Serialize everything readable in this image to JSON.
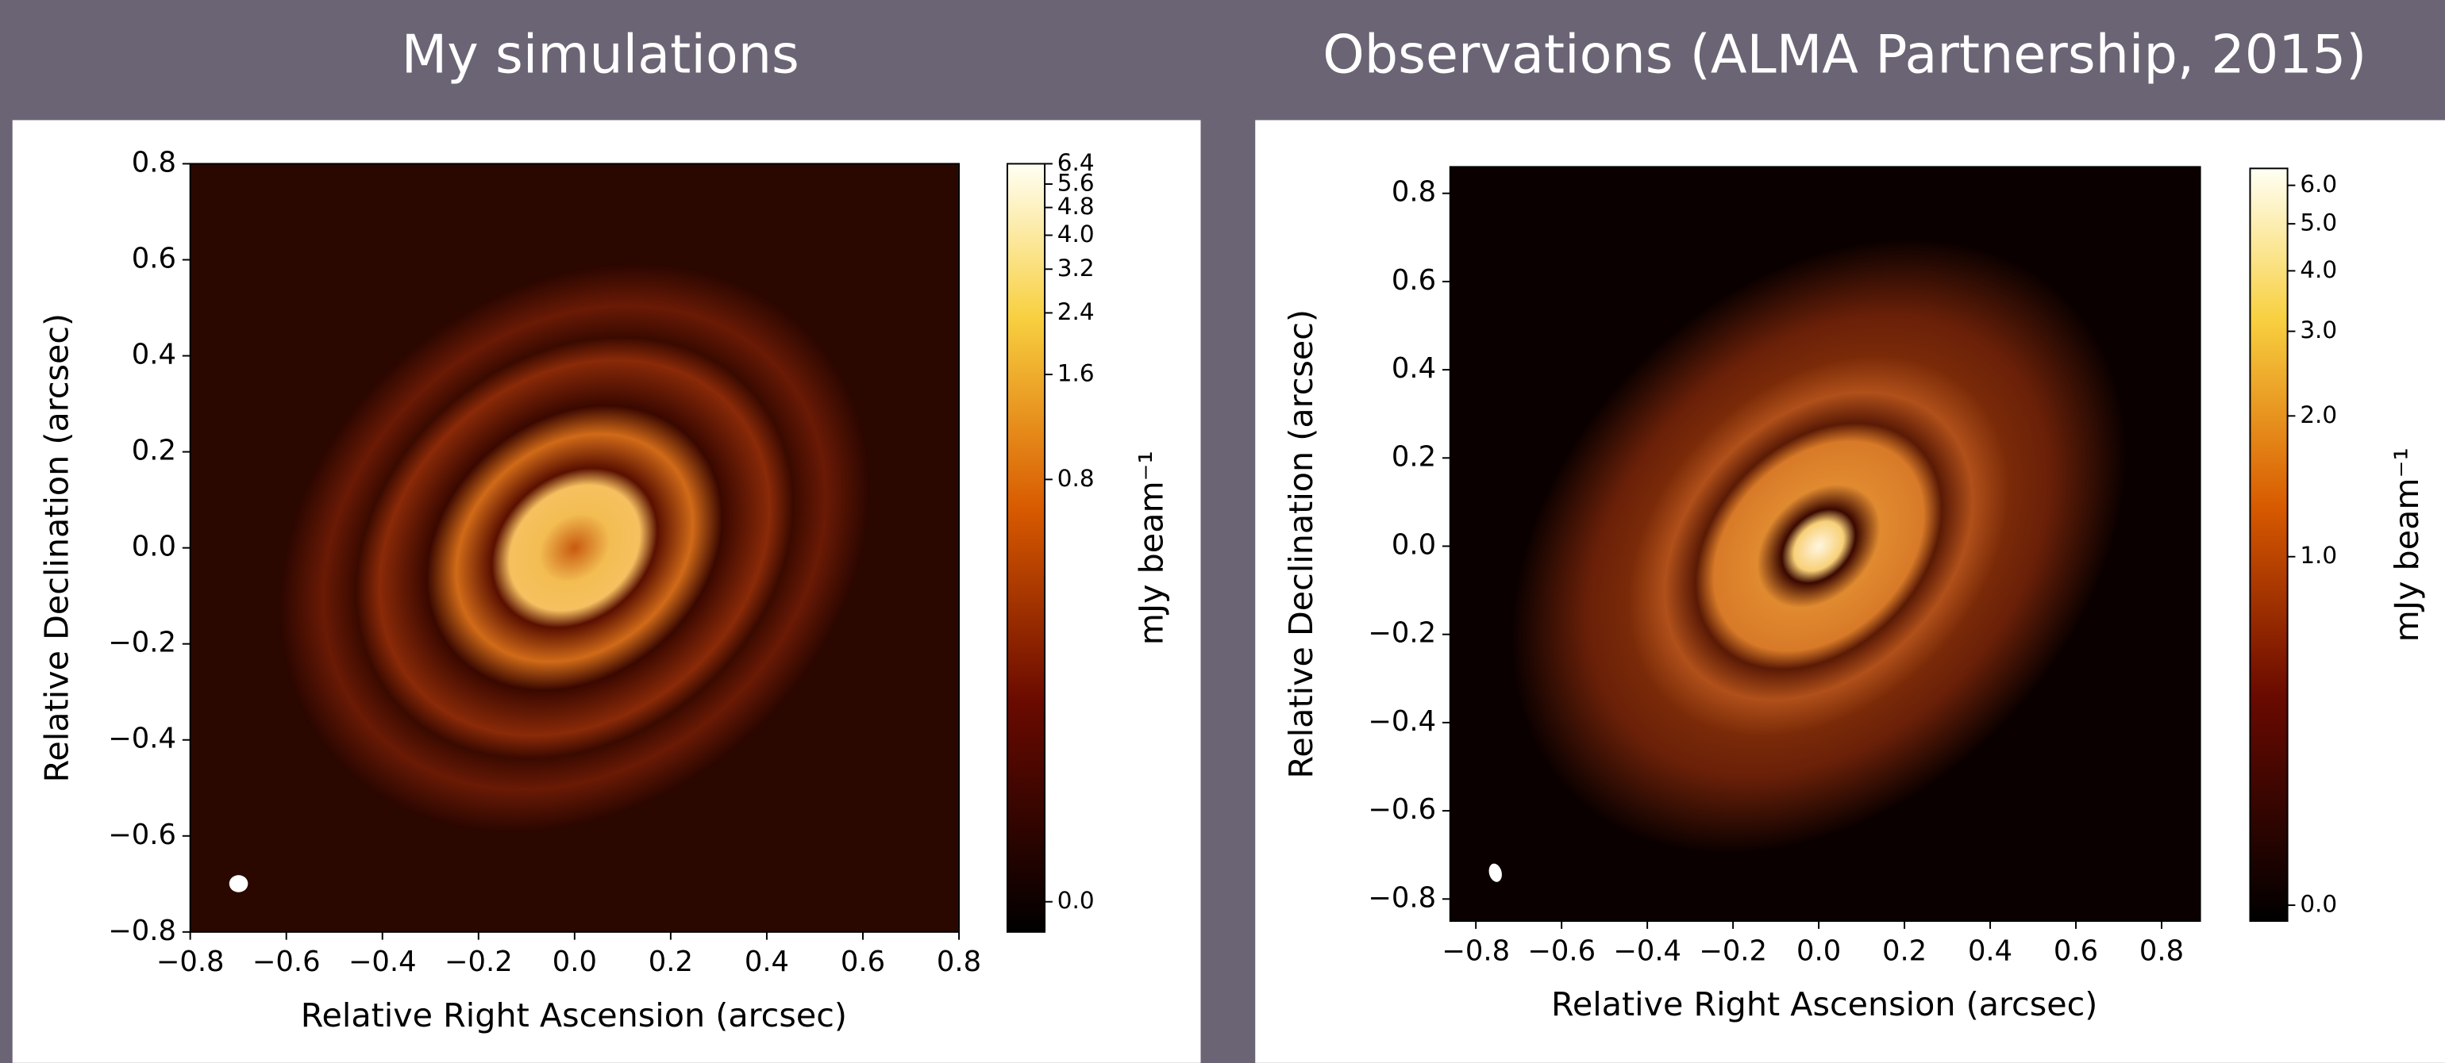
{
  "chart_data": [
    {
      "type": "image",
      "title": "My simulations",
      "xlabel": "Relative Right Ascension (arcsec)",
      "ylabel": "Relative Declination (arcsec)",
      "xlim": [
        -0.8,
        0.8
      ],
      "ylim": [
        -0.8,
        0.8
      ],
      "xticks": [
        {
          "value": -0.8,
          "label": "−0.8"
        },
        {
          "value": -0.6,
          "label": "−0.6"
        },
        {
          "value": -0.4,
          "label": "−0.4"
        },
        {
          "value": -0.2,
          "label": "−0.2"
        },
        {
          "value": 0,
          "label": "0.0"
        },
        0.2,
        0.4,
        0.6,
        0.8
      ],
      "yticks": [
        {
          "value": -0.8,
          "label": "−0.8"
        },
        {
          "value": -0.6,
          "label": "−0.6"
        },
        {
          "value": -0.4,
          "label": "−0.4"
        },
        {
          "value": -0.2,
          "label": "−0.2"
        },
        {
          "value": 0,
          "label": "0.0"
        },
        0.2,
        0.4,
        0.6,
        0.8
      ],
      "colorbar": {
        "label": "mJy beam⁻¹",
        "scale": "asinh",
        "lim": [
          -0.02,
          6.4
        ],
        "ticks": [
          {
            "value": 0,
            "label": "0.0"
          },
          0.8,
          1.6,
          2.4,
          3.2,
          {
            "value": 4,
            "label": "4.0"
          },
          4.8,
          5.6,
          6.4
        ]
      }
    },
    {
      "type": "image",
      "title": "Observations (ALMA Partnership, 2015)",
      "xlabel": "Relative Right Ascension (arcsec)",
      "ylabel": "Relative Declination (arcsec)",
      "xlim": [
        -0.86,
        0.89
      ],
      "ylim": [
        -0.85,
        0.86
      ],
      "xticks": [
        {
          "value": -0.8,
          "label": "−0.8"
        },
        {
          "value": -0.6,
          "label": "−0.6"
        },
        {
          "value": -0.4,
          "label": "−0.4"
        },
        {
          "value": -0.2,
          "label": "−0.2"
        },
        {
          "value": 0,
          "label": "0.0"
        },
        0.2,
        0.4,
        0.6,
        0.8
      ],
      "yticks": [
        {
          "value": -0.8,
          "label": "−0.8"
        },
        {
          "value": -0.6,
          "label": "−0.6"
        },
        {
          "value": -0.4,
          "label": "−0.4"
        },
        {
          "value": -0.2,
          "label": "−0.2"
        },
        {
          "value": 0,
          "label": "0.0"
        },
        0.2,
        0.4,
        0.6,
        0.8
      ],
      "colorbar": {
        "label": "mJy beam⁻¹",
        "scale": "asinh",
        "lim": [
          -0.03,
          6.5
        ],
        "ticks": [
          {
            "value": 0,
            "label": "0.0"
          },
          {
            "value": 1,
            "label": "1.0"
          },
          {
            "value": 2,
            "label": "2.0"
          },
          {
            "value": 3,
            "label": "3.0"
          },
          {
            "value": 4,
            "label": "4.0"
          },
          {
            "value": 5,
            "label": "5.0"
          },
          {
            "value": 6,
            "label": "6.0"
          }
        ]
      }
    }
  ]
}
